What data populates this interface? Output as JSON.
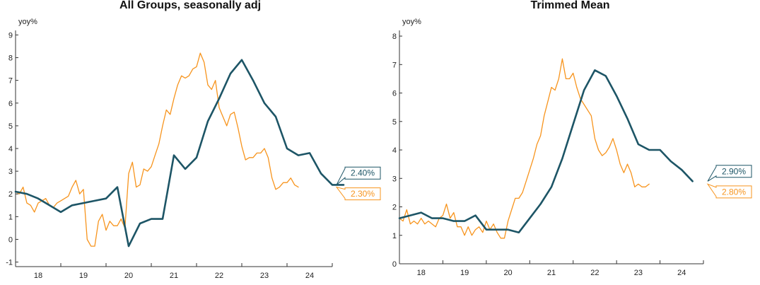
{
  "colors": {
    "series_a": "#1d5566",
    "series_b": "#f7941d",
    "axis": "#333333"
  },
  "chart_data": [
    {
      "type": "line",
      "title": "All Groups, seasonally adj",
      "unit_label": "yoy%",
      "ylim": [
        -1.2,
        9.2
      ],
      "yticks": [
        -1,
        0,
        1,
        2,
        3,
        4,
        5,
        6,
        7,
        8,
        9
      ],
      "xlim": [
        2018.0,
        2025.0
      ],
      "xticks": [
        2018.5,
        2019.5,
        2020.5,
        2021.5,
        2022.5,
        2023.5,
        2024.5
      ],
      "xtick_labels": [
        "18",
        "19",
        "20",
        "21",
        "22",
        "23",
        "24"
      ],
      "grid": false,
      "series": [
        {
          "color_key": "series_a",
          "line_width": 2.6,
          "points": [
            [
              2018.0,
              2.1
            ],
            [
              2018.25,
              2.0
            ],
            [
              2018.5,
              1.8
            ],
            [
              2018.75,
              1.5
            ],
            [
              2019.0,
              1.2
            ],
            [
              2019.25,
              1.5
            ],
            [
              2019.5,
              1.6
            ],
            [
              2019.75,
              1.7
            ],
            [
              2020.0,
              1.8
            ],
            [
              2020.25,
              2.3
            ],
            [
              2020.5,
              -0.3
            ],
            [
              2020.75,
              0.7
            ],
            [
              2021.0,
              0.9
            ],
            [
              2021.25,
              0.9
            ],
            [
              2021.5,
              3.7
            ],
            [
              2021.75,
              3.1
            ],
            [
              2022.0,
              3.6
            ],
            [
              2022.25,
              5.2
            ],
            [
              2022.5,
              6.2
            ],
            [
              2022.75,
              7.3
            ],
            [
              2023.0,
              7.9
            ],
            [
              2023.25,
              7.0
            ],
            [
              2023.5,
              6.0
            ],
            [
              2023.75,
              5.4
            ],
            [
              2024.0,
              4.0
            ],
            [
              2024.25,
              3.7
            ],
            [
              2024.5,
              3.8
            ],
            [
              2024.75,
              2.9
            ],
            [
              2025.0,
              2.4
            ],
            [
              2025.25,
              2.4
            ]
          ]
        },
        {
          "color_key": "series_b",
          "line_width": 1.3,
          "points": [
            [
              2018.0,
              2.1
            ],
            [
              2018.083,
              2.0
            ],
            [
              2018.167,
              2.3
            ],
            [
              2018.25,
              1.6
            ],
            [
              2018.333,
              1.5
            ],
            [
              2018.417,
              1.2
            ],
            [
              2018.5,
              1.6
            ],
            [
              2018.583,
              1.7
            ],
            [
              2018.667,
              1.8
            ],
            [
              2018.75,
              1.5
            ],
            [
              2018.833,
              1.4
            ],
            [
              2018.917,
              1.6
            ],
            [
              2019.0,
              1.7
            ],
            [
              2019.083,
              1.8
            ],
            [
              2019.167,
              1.9
            ],
            [
              2019.25,
              2.3
            ],
            [
              2019.333,
              2.6
            ],
            [
              2019.417,
              2.0
            ],
            [
              2019.5,
              2.2
            ],
            [
              2019.583,
              0.0
            ],
            [
              2019.667,
              -0.3
            ],
            [
              2019.75,
              -0.3
            ],
            [
              2019.833,
              0.8
            ],
            [
              2019.917,
              1.1
            ],
            [
              2020.0,
              0.4
            ],
            [
              2020.083,
              0.8
            ],
            [
              2020.167,
              0.6
            ],
            [
              2020.25,
              0.6
            ],
            [
              2020.333,
              0.9
            ],
            [
              2020.417,
              0.5
            ],
            [
              2020.5,
              2.9
            ],
            [
              2020.583,
              3.4
            ],
            [
              2020.667,
              2.3
            ],
            [
              2020.75,
              2.4
            ],
            [
              2020.833,
              3.1
            ],
            [
              2020.917,
              3.0
            ],
            [
              2021.0,
              3.2
            ],
            [
              2021.083,
              3.7
            ],
            [
              2021.167,
              4.2
            ],
            [
              2021.25,
              5.0
            ],
            [
              2021.333,
              5.7
            ],
            [
              2021.417,
              5.5
            ],
            [
              2021.5,
              6.2
            ],
            [
              2021.583,
              6.8
            ],
            [
              2021.667,
              7.2
            ],
            [
              2021.75,
              7.1
            ],
            [
              2021.833,
              7.2
            ],
            [
              2021.917,
              7.5
            ],
            [
              2022.0,
              7.6
            ],
            [
              2022.083,
              8.2
            ],
            [
              2022.167,
              7.8
            ],
            [
              2022.25,
              6.8
            ],
            [
              2022.333,
              6.6
            ],
            [
              2022.417,
              7.0
            ],
            [
              2022.5,
              5.8
            ],
            [
              2022.583,
              5.4
            ],
            [
              2022.667,
              5.0
            ],
            [
              2022.75,
              5.5
            ],
            [
              2022.833,
              5.6
            ],
            [
              2022.917,
              4.9
            ],
            [
              2023.0,
              4.1
            ],
            [
              2023.083,
              3.5
            ],
            [
              2023.167,
              3.6
            ],
            [
              2023.25,
              3.6
            ],
            [
              2023.333,
              3.8
            ],
            [
              2023.417,
              3.8
            ],
            [
              2023.5,
              4.0
            ],
            [
              2023.583,
              3.6
            ],
            [
              2023.667,
              2.7
            ],
            [
              2023.75,
              2.2
            ],
            [
              2023.833,
              2.3
            ],
            [
              2023.917,
              2.5
            ],
            [
              2024.0,
              2.5
            ],
            [
              2024.083,
              2.7
            ],
            [
              2024.167,
              2.4
            ],
            [
              2024.25,
              2.3
            ]
          ]
        }
      ],
      "callouts": [
        {
          "text": "2.40%",
          "color_key": "series_a",
          "value": 2.4
        },
        {
          "text": "2.30%",
          "color_key": "series_b",
          "value": 2.3
        }
      ]
    },
    {
      "type": "line",
      "title": "Trimmed Mean",
      "unit_label": "yoy%",
      "ylim": [
        0,
        8.2
      ],
      "yticks": [
        0,
        1,
        2,
        3,
        4,
        5,
        6,
        7,
        8
      ],
      "xlim": [
        2018.0,
        2025.0
      ],
      "xticks": [
        2018.5,
        2019.5,
        2020.5,
        2021.5,
        2022.5,
        2023.5,
        2024.5
      ],
      "xtick_labels": [
        "18",
        "19",
        "20",
        "21",
        "22",
        "23",
        "24"
      ],
      "grid": false,
      "series": [
        {
          "color_key": "series_a",
          "line_width": 2.6,
          "points": [
            [
              2018.0,
              1.6
            ],
            [
              2018.25,
              1.7
            ],
            [
              2018.5,
              1.8
            ],
            [
              2018.75,
              1.6
            ],
            [
              2019.0,
              1.6
            ],
            [
              2019.25,
              1.5
            ],
            [
              2019.5,
              1.5
            ],
            [
              2019.75,
              1.7
            ],
            [
              2020.0,
              1.2
            ],
            [
              2020.25,
              1.2
            ],
            [
              2020.5,
              1.2
            ],
            [
              2020.75,
              1.1
            ],
            [
              2021.0,
              1.6
            ],
            [
              2021.25,
              2.1
            ],
            [
              2021.5,
              2.7
            ],
            [
              2021.75,
              3.7
            ],
            [
              2022.0,
              4.9
            ],
            [
              2022.25,
              6.1
            ],
            [
              2022.5,
              6.8
            ],
            [
              2022.75,
              6.6
            ],
            [
              2023.0,
              5.9
            ],
            [
              2023.25,
              5.1
            ],
            [
              2023.5,
              4.2
            ],
            [
              2023.75,
              4.0
            ],
            [
              2024.0,
              4.0
            ],
            [
              2024.25,
              3.6
            ],
            [
              2024.5,
              3.3
            ],
            [
              2024.75,
              2.9
            ]
          ]
        },
        {
          "color_key": "series_b",
          "line_width": 1.3,
          "points": [
            [
              2018.0,
              1.6
            ],
            [
              2018.083,
              1.5
            ],
            [
              2018.167,
              1.9
            ],
            [
              2018.25,
              1.4
            ],
            [
              2018.333,
              1.5
            ],
            [
              2018.417,
              1.4
            ],
            [
              2018.5,
              1.6
            ],
            [
              2018.583,
              1.4
            ],
            [
              2018.667,
              1.5
            ],
            [
              2018.75,
              1.4
            ],
            [
              2018.833,
              1.3
            ],
            [
              2018.917,
              1.6
            ],
            [
              2019.0,
              1.7
            ],
            [
              2019.083,
              2.1
            ],
            [
              2019.167,
              1.6
            ],
            [
              2019.25,
              1.8
            ],
            [
              2019.333,
              1.3
            ],
            [
              2019.417,
              1.3
            ],
            [
              2019.5,
              1.0
            ],
            [
              2019.583,
              1.3
            ],
            [
              2019.667,
              1.0
            ],
            [
              2019.75,
              1.2
            ],
            [
              2019.833,
              1.3
            ],
            [
              2019.917,
              1.1
            ],
            [
              2020.0,
              1.5
            ],
            [
              2020.083,
              1.2
            ],
            [
              2020.167,
              1.4
            ],
            [
              2020.25,
              1.1
            ],
            [
              2020.333,
              0.9
            ],
            [
              2020.417,
              0.9
            ],
            [
              2020.5,
              1.5
            ],
            [
              2020.583,
              1.9
            ],
            [
              2020.667,
              2.3
            ],
            [
              2020.75,
              2.3
            ],
            [
              2020.833,
              2.5
            ],
            [
              2020.917,
              2.9
            ],
            [
              2021.0,
              3.3
            ],
            [
              2021.083,
              3.7
            ],
            [
              2021.167,
              4.2
            ],
            [
              2021.25,
              4.5
            ],
            [
              2021.333,
              5.2
            ],
            [
              2021.417,
              5.7
            ],
            [
              2021.5,
              6.2
            ],
            [
              2021.583,
              6.1
            ],
            [
              2021.667,
              6.5
            ],
            [
              2021.75,
              7.2
            ],
            [
              2021.833,
              6.5
            ],
            [
              2021.917,
              6.5
            ],
            [
              2022.0,
              6.7
            ],
            [
              2022.083,
              6.2
            ],
            [
              2022.167,
              5.8
            ],
            [
              2022.25,
              5.6
            ],
            [
              2022.333,
              5.4
            ],
            [
              2022.417,
              5.2
            ],
            [
              2022.5,
              4.4
            ],
            [
              2022.583,
              4.0
            ],
            [
              2022.667,
              3.8
            ],
            [
              2022.75,
              3.9
            ],
            [
              2022.833,
              4.1
            ],
            [
              2022.917,
              4.4
            ],
            [
              2023.0,
              4.0
            ],
            [
              2023.083,
              3.5
            ],
            [
              2023.167,
              3.2
            ],
            [
              2023.25,
              3.5
            ],
            [
              2023.333,
              3.2
            ],
            [
              2023.417,
              2.7
            ],
            [
              2023.5,
              2.8
            ],
            [
              2023.583,
              2.7
            ],
            [
              2023.667,
              2.7
            ],
            [
              2023.75,
              2.8
            ]
          ]
        }
      ],
      "callouts": [
        {
          "text": "2.90%",
          "color_key": "series_a",
          "value": 2.9
        },
        {
          "text": "2.80%",
          "color_key": "series_b",
          "value": 2.8
        }
      ]
    }
  ]
}
